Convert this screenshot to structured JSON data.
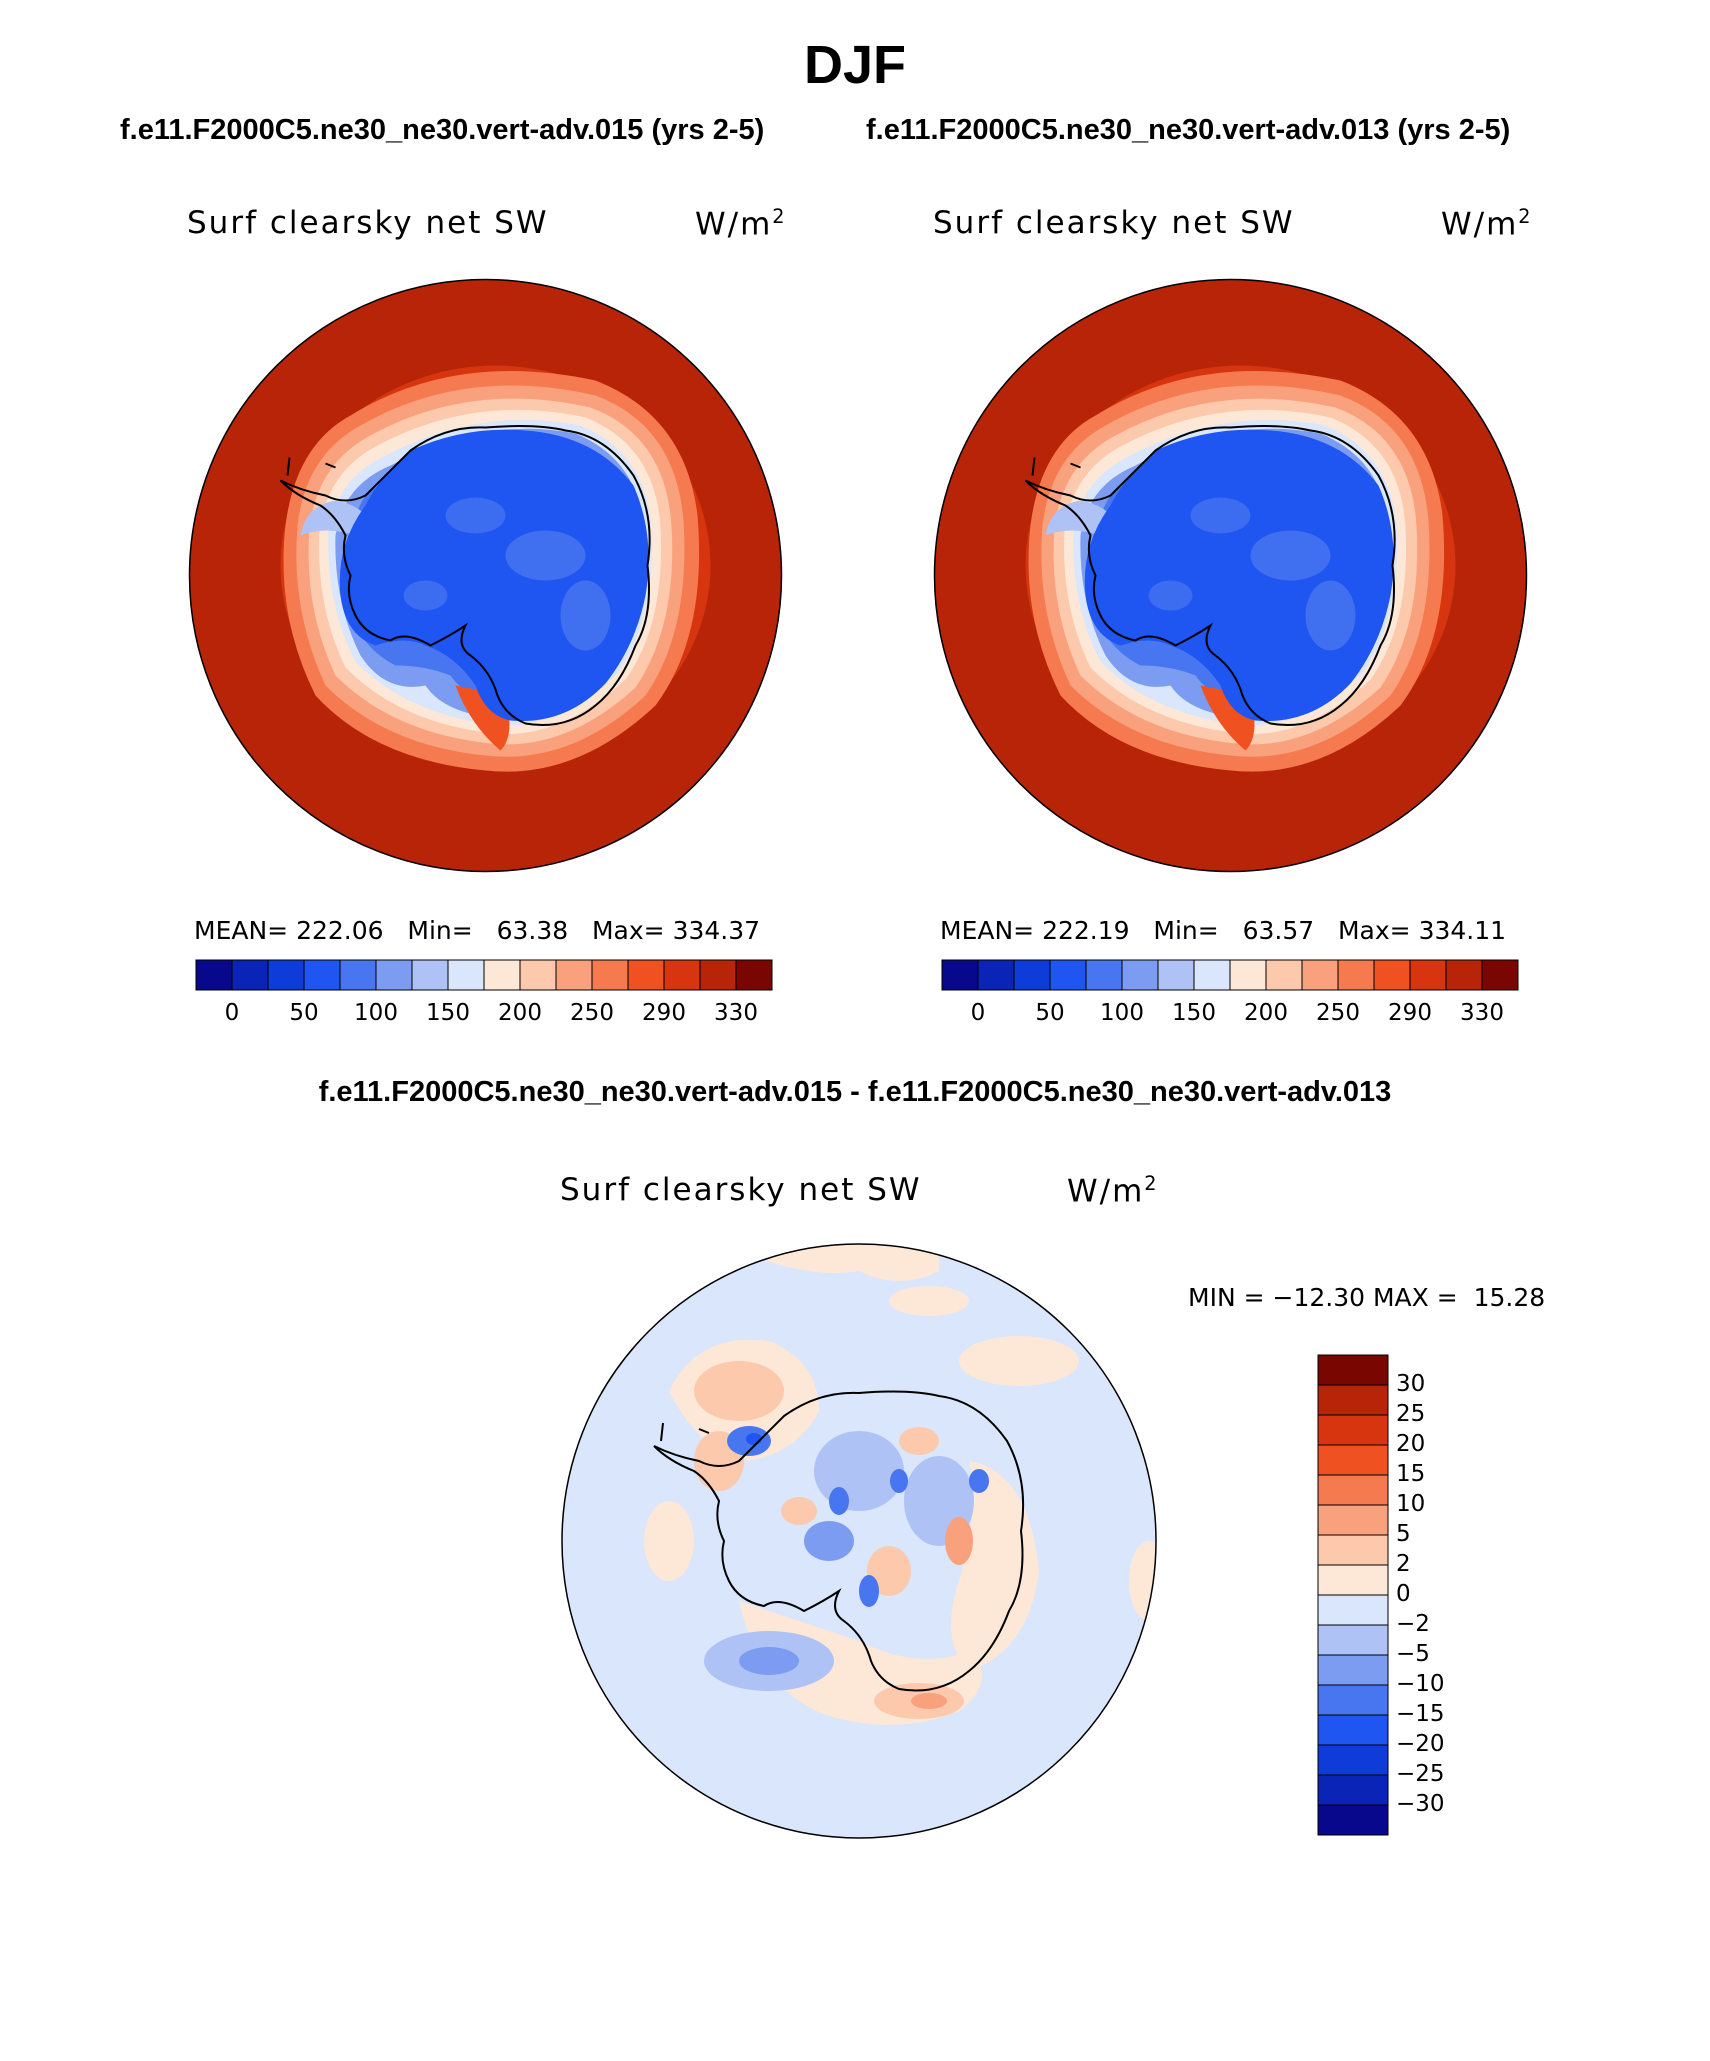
{
  "season": "DJF",
  "case1_header": "f.e11.F2000C5.ne30_ne30.vert-adv.015 (yrs 2-5)",
  "case2_header": "f.e11.F2000C5.ne30_ne30.vert-adv.013 (yrs 2-5)",
  "diff_header": "f.e11.F2000C5.ne30_ne30.vert-adv.015 - f.e11.F2000C5.ne30_ne30.vert-adv.013",
  "panels": [
    {
      "title": "Surf clearsky net SW",
      "units_base": "W/m",
      "units_exp": "2",
      "mean_label": "MEAN=",
      "mean": "222.06",
      "min_label": "Min=",
      "min": "63.38",
      "max_label": "Max=",
      "max": "334.37"
    },
    {
      "title": "Surf clearsky net SW",
      "units_base": "W/m",
      "units_exp": "2",
      "mean_label": "MEAN=",
      "mean": "222.19",
      "min_label": "Min=",
      "min": "63.57",
      "max_label": "Max=",
      "max": "334.11"
    }
  ],
  "diff_panel": {
    "title": "Surf clearsky net SW",
    "units_base": "W/m",
    "units_exp": "2",
    "min_label": "MIN =",
    "min": "−12.30",
    "max_label": "MAX =",
    "max": "15.28"
  },
  "abs_colorbar": {
    "ticks": [
      "0",
      "50",
      "100",
      "150",
      "200",
      "250",
      "290",
      "330"
    ],
    "colors": [
      "#08088c",
      "#0a24b8",
      "#0d3cd8",
      "#1f55f0",
      "#4876f0",
      "#7b9cf0",
      "#aec2f5",
      "#d9e6fb",
      "#fde8d8",
      "#fcc9ad",
      "#f9a07c",
      "#f57a4f",
      "#ef5121",
      "#d63510",
      "#b82408",
      "#7a0602"
    ]
  },
  "diff_colorbar": {
    "labels": [
      "30",
      "25",
      "20",
      "15",
      "10",
      "5",
      "2",
      "0",
      "−2",
      "−5",
      "−10",
      "−15",
      "−20",
      "−25",
      "−30"
    ],
    "colors": [
      "#7a0602",
      "#b82408",
      "#d63510",
      "#ef5121",
      "#f57a4f",
      "#f9a07c",
      "#fcc9ad",
      "#fde8d8",
      "#d9e6fb",
      "#aec2f5",
      "#7b9cf0",
      "#4876f0",
      "#1f55f0",
      "#0d3cd8",
      "#0a24b8",
      "#08088c"
    ]
  }
}
